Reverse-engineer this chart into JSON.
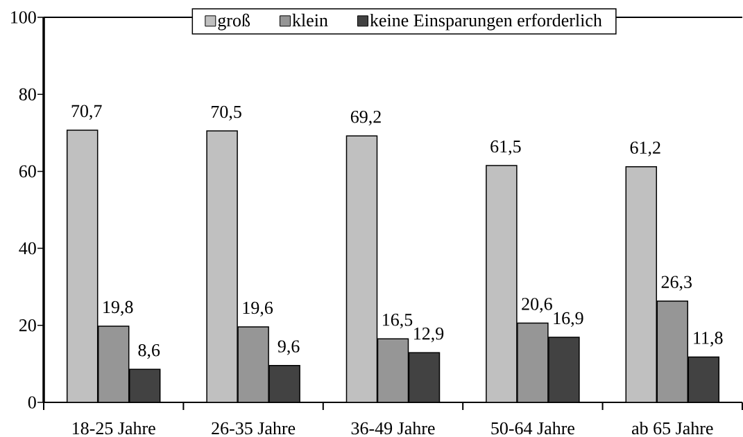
{
  "chart_data": {
    "type": "bar",
    "categories": [
      "18-25 Jahre",
      "26-35 Jahre",
      "36-49 Jahre",
      "50-64 Jahre",
      "ab 65 Jahre"
    ],
    "series": [
      {
        "name": "groß",
        "color": "#c0c0c0",
        "values": [
          70.7,
          70.5,
          69.2,
          61.5,
          61.2
        ],
        "value_labels": [
          "70,7",
          "70,5",
          "69,2",
          "61,5",
          "61,2"
        ]
      },
      {
        "name": "klein",
        "color": "#969696",
        "values": [
          19.8,
          19.6,
          16.5,
          20.6,
          26.3
        ],
        "value_labels": [
          "19,8",
          "19,6",
          "16,5",
          "20,6",
          "26,3"
        ]
      },
      {
        "name": "keine Einsparungen erforderlich",
        "color": "#424242",
        "values": [
          8.6,
          9.6,
          12.9,
          16.9,
          11.8
        ],
        "value_labels": [
          "8,6",
          "9,6",
          "12,9",
          "16,9",
          "11,8"
        ]
      }
    ],
    "ylim": [
      0,
      100
    ],
    "yticks": [
      0,
      20,
      40,
      60,
      80,
      100
    ],
    "legend": "top"
  }
}
